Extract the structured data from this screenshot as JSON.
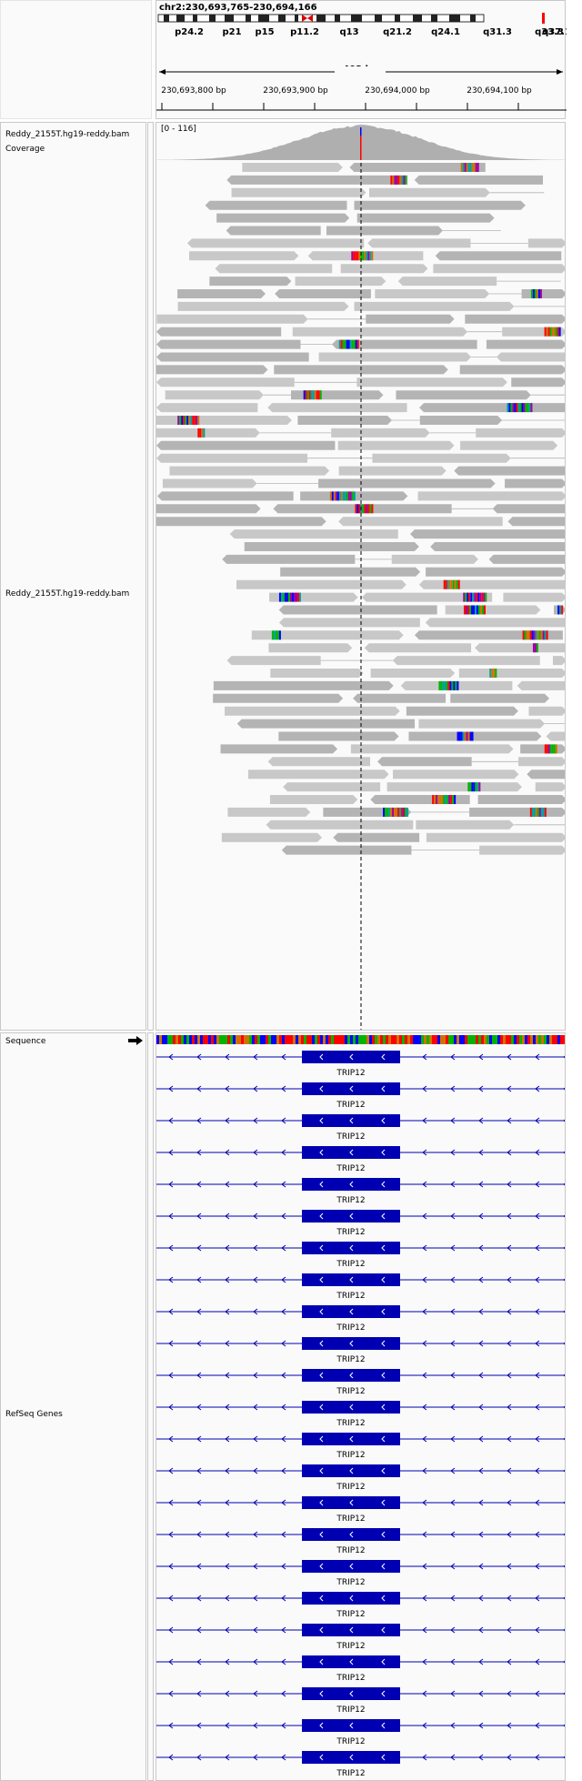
{
  "header": {
    "locus": "chr2:230,693,765-230,694,166",
    "bands": [
      "p24.2",
      "p21",
      "p15",
      "p11.2",
      "q13",
      "q21.2",
      "q24.1",
      "q31.3",
      "q33.3",
      "q37.1"
    ],
    "span_label": "403 bp",
    "ticks": [
      "230,693,800 bp",
      "230,693,900 bp",
      "230,694,000 bp",
      "230,694,100 bp"
    ]
  },
  "tracks": {
    "coverage": {
      "label": "Reddy_2155T.hg19-reddy.bam Coverage",
      "range": "[0 - 116]"
    },
    "alignments": {
      "label": "Reddy_2155T.hg19-reddy.bam"
    },
    "sequence": {
      "label": "Sequence",
      "strand_icon": "arrow-right-icon"
    },
    "refseq": {
      "label": "RefSeq Genes",
      "gene_name": "TRIP12"
    }
  },
  "colors": {
    "read": "#c8c8c8",
    "read_dark": "#b4b4b4",
    "coverage": "#afafaf",
    "gene": "#0000b2",
    "seq_A": "#00b400",
    "seq_C": "#0000ff",
    "seq_G": "#d17105",
    "seq_T": "#ff0000"
  }
}
